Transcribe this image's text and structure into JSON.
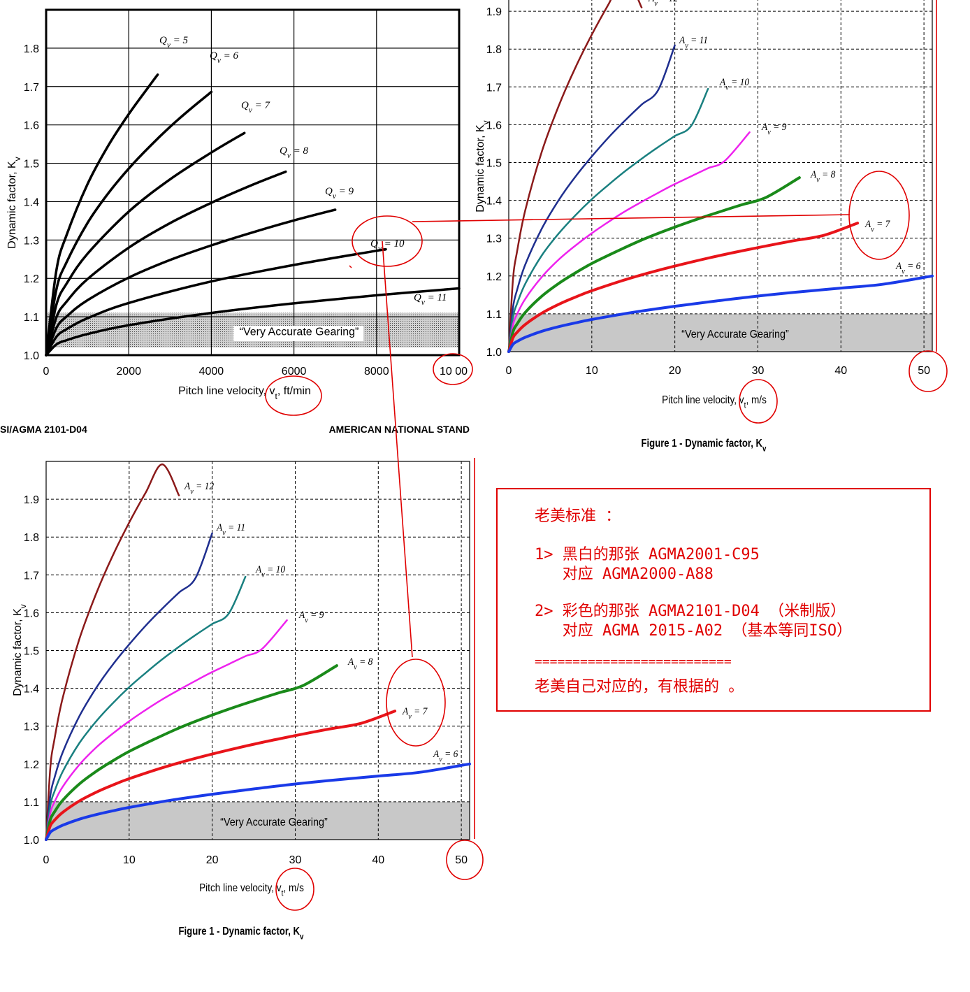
{
  "chart_data": [
    {
      "type": "line",
      "ylabel": "Dynamic factor, K_v",
      "xlabel": "Pitch line velocity, v_t, ft/min",
      "xlim": [
        0,
        10000
      ],
      "ylim": [
        1.0,
        1.9
      ],
      "x_ticks": [
        "0",
        "2000",
        "4000",
        "6000",
        "8000",
        "10 00"
      ],
      "y_ticks": [
        "1.0",
        "1.1",
        "1.2",
        "1.3",
        "1.4",
        "1.5",
        "1.6",
        "1.7",
        "1.8"
      ],
      "grid": true,
      "band_label": "“Very Accurate Gearing”",
      "band_range": [
        1.02,
        1.11
      ],
      "series": [
        {
          "name": "Q_v = 5",
          "label_main": "Q",
          "label_sub": "v",
          "label_rest": " = 5",
          "x": [
            0,
            250,
            500,
            1000,
            1500,
            2000,
            2500,
            2700
          ],
          "y": [
            1.0,
            1.222,
            1.314,
            1.445,
            1.545,
            1.628,
            1.702,
            1.731
          ]
        },
        {
          "name": "Q_v = 6",
          "label_main": "Q",
          "label_sub": "v",
          "label_rest": " = 6",
          "x": [
            0,
            250,
            500,
            1000,
            1500,
            2000,
            2500,
            3000,
            3500,
            4000
          ],
          "y": [
            1.0,
            1.172,
            1.243,
            1.344,
            1.421,
            1.486,
            1.543,
            1.595,
            1.642,
            1.686
          ]
        },
        {
          "name": "Q_v = 7",
          "label_main": "Q",
          "label_sub": "v",
          "label_rest": " = 7",
          "x": [
            0,
            250,
            500,
            1000,
            2000,
            3000,
            4000,
            4800
          ],
          "y": [
            1.0,
            1.132,
            1.187,
            1.264,
            1.374,
            1.458,
            1.528,
            1.579
          ]
        },
        {
          "name": "Q_v = 8",
          "label_main": "Q",
          "label_sub": "v",
          "label_rest": " = 8",
          "x": [
            0,
            250,
            500,
            1000,
            2000,
            3000,
            4000,
            5000,
            5800
          ],
          "y": [
            1.0,
            1.099,
            1.14,
            1.198,
            1.28,
            1.344,
            1.397,
            1.444,
            1.478
          ]
        },
        {
          "name": "Q_v = 9",
          "label_main": "Q",
          "label_sub": "v",
          "label_rest": " = 9",
          "x": [
            0,
            250,
            500,
            1000,
            2000,
            3000,
            4000,
            5000,
            6000,
            7000
          ],
          "y": [
            1.0,
            1.071,
            1.101,
            1.143,
            1.202,
            1.248,
            1.286,
            1.32,
            1.351,
            1.379
          ]
        },
        {
          "name": "Q_v = 10",
          "label_main": "Q",
          "label_sub": "v",
          "label_rest": " = 10",
          "x": [
            0,
            250,
            500,
            1000,
            2000,
            4000,
            6000,
            8000,
            8200
          ],
          "y": [
            1.0,
            1.048,
            1.068,
            1.096,
            1.136,
            1.192,
            1.235,
            1.272,
            1.275
          ]
        },
        {
          "name": "Q_v = 11",
          "label_main": "Q",
          "label_sub": "v",
          "label_rest": " = 11",
          "x": [
            0,
            250,
            500,
            1000,
            2000,
            4000,
            6000,
            8000,
            10000
          ],
          "y": [
            1.0,
            1.028,
            1.039,
            1.055,
            1.078,
            1.11,
            1.135,
            1.156,
            1.174
          ]
        }
      ],
      "header_left": "SI/AGMA 2101-D04",
      "header_right": "AMERICAN NATIONAL STAND"
    },
    {
      "type": "line",
      "ylabel": "Dynamic factor, K_v",
      "xlabel": "Pitch line velocity, v_t, m/s",
      "title": "Figure 1 - Dynamic factor, K_v",
      "xlim": [
        0,
        51
      ],
      "ylim": [
        1.0,
        2.0
      ],
      "x_ticks": [
        "0",
        "10",
        "20",
        "30",
        "40",
        "50"
      ],
      "y_ticks": [
        "1.0",
        "1.1",
        "1.2",
        "1.3",
        "1.4",
        "1.5",
        "1.6",
        "1.7",
        "1.8",
        "1.9"
      ],
      "grid": true,
      "band_label": "“Very Accurate Gearing”",
      "band_range": [
        1.0,
        1.1
      ],
      "series": [
        {
          "name": "A_v = 12",
          "label_main": "A",
          "label_sub": "v",
          "label_rest": " = 12",
          "color": "#8b1a1a",
          "x": [
            0,
            0.5,
            1,
            2,
            4,
            6,
            8,
            10,
            12,
            14,
            16
          ],
          "y": [
            1.0,
            1.188,
            1.265,
            1.375,
            1.53,
            1.649,
            1.75,
            1.838,
            1.918,
            1.992,
            1.91
          ]
        },
        {
          "name": "A_v = 11",
          "label_main": "A",
          "label_sub": "v",
          "label_rest": " = 11",
          "color": "#1f2f8f",
          "x": [
            0,
            0.5,
            1,
            2,
            4,
            6,
            8,
            10,
            12,
            14,
            16,
            18,
            20
          ],
          "y": [
            1.0,
            1.115,
            1.163,
            1.231,
            1.326,
            1.4,
            1.462,
            1.516,
            1.566,
            1.611,
            1.653,
            1.692,
            1.81
          ]
        },
        {
          "name": "A_v = 10",
          "label_main": "A",
          "label_sub": "v",
          "label_rest": " = 10",
          "color": "#1a8080",
          "x": [
            0,
            0.5,
            1,
            2,
            4,
            6,
            8,
            10,
            12,
            14,
            16,
            18,
            20,
            22,
            24
          ],
          "y": [
            1.0,
            1.09,
            1.127,
            1.18,
            1.255,
            1.312,
            1.36,
            1.403,
            1.441,
            1.477,
            1.51,
            1.541,
            1.57,
            1.598,
            1.695
          ]
        },
        {
          "name": "A_v = 9",
          "label_main": "A",
          "label_sub": "v",
          "label_rest": " = 9",
          "color": "#ee22ee",
          "x": [
            0,
            0.5,
            1,
            2,
            4,
            6,
            8,
            10,
            12,
            14,
            16,
            18,
            20,
            22,
            24,
            26,
            29
          ],
          "y": [
            1.0,
            1.07,
            1.099,
            1.14,
            1.198,
            1.243,
            1.28,
            1.313,
            1.343,
            1.371,
            1.396,
            1.42,
            1.443,
            1.464,
            1.485,
            1.504,
            1.58
          ]
        },
        {
          "name": "A_v = 8",
          "label_main": "A",
          "label_sub": "v",
          "label_rest": " = 8",
          "color": "#1a8a1a",
          "x": [
            0,
            0.5,
            1,
            2,
            4,
            6,
            8,
            10,
            13,
            16,
            19,
            22,
            25,
            28,
            31,
            35
          ],
          "y": [
            1.0,
            1.052,
            1.073,
            1.104,
            1.147,
            1.18,
            1.208,
            1.233,
            1.265,
            1.295,
            1.321,
            1.345,
            1.367,
            1.388,
            1.408,
            1.46
          ]
        },
        {
          "name": "A_v = 7",
          "label_main": "A",
          "label_sub": "v",
          "label_rest": " = 7",
          "color": "#e8141a",
          "x": [
            0,
            0.5,
            1,
            2,
            4,
            6,
            8,
            10,
            14,
            18,
            22,
            26,
            30,
            34,
            38,
            42
          ],
          "y": [
            1.0,
            1.036,
            1.051,
            1.072,
            1.102,
            1.125,
            1.144,
            1.161,
            1.19,
            1.215,
            1.237,
            1.257,
            1.275,
            1.292,
            1.308,
            1.34
          ]
        },
        {
          "name": "A_v = 6",
          "label_main": "A",
          "label_sub": "v",
          "label_rest": " = 6",
          "color": "#1a3ae8",
          "x": [
            0,
            0.5,
            1,
            2,
            4,
            6,
            8,
            10,
            15,
            20,
            25,
            30,
            35,
            40,
            45,
            51
          ],
          "y": [
            1.0,
            1.019,
            1.027,
            1.038,
            1.054,
            1.066,
            1.076,
            1.085,
            1.104,
            1.12,
            1.134,
            1.147,
            1.158,
            1.168,
            1.178,
            1.2
          ]
        }
      ]
    }
  ],
  "note": {
    "lines": [
      "老美标准 ：",
      "1> 黑白的那张 AGMA2001-C95",
      "   对应 AGMA2000-A88",
      "2> 彩色的那张 AGMA2101-D04 （米制版）",
      "   对应 AGMA 2015-A02 （基本等同ISO）",
      "==========================",
      "老美自己对应的，有根据的 。"
    ]
  },
  "colors": {
    "annotation": "#e00000",
    "band": "#c8c8c8"
  }
}
